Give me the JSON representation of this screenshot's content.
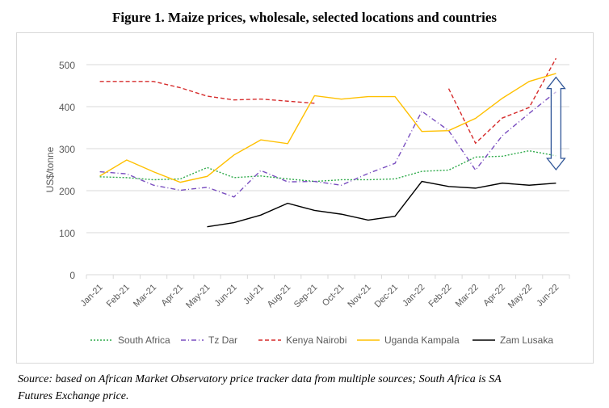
{
  "chart_data": {
    "type": "line",
    "title": "Figure 1. Maize prices, wholesale, selected locations and countries",
    "xlabel": "",
    "ylabel": "US$/tonne",
    "ylim": [
      0,
      500
    ],
    "yticks": [
      0,
      100,
      200,
      300,
      400,
      500
    ],
    "grid": true,
    "legend": "bottom",
    "categories": [
      "Jan-21",
      "Feb-21",
      "Mar-21",
      "Apr-21",
      "May-21",
      "Jun-21",
      "Jul-21",
      "Aug-21",
      "Sep-21",
      "Oct-21",
      "Nov-21",
      "Dec-21",
      "Jan-22",
      "Feb-22",
      "Mar-22",
      "Apr-22",
      "May-22",
      "Jun-22"
    ],
    "series": [
      {
        "name": "South Africa",
        "color": "#2eaa4a",
        "dash": "2,2",
        "values": [
          233,
          231,
          226,
          228,
          255,
          231,
          235,
          228,
          222,
          226,
          226,
          228,
          246,
          249,
          280,
          282,
          295,
          283
        ]
      },
      {
        "name": "Tz Dar",
        "color": "#7a4fc0",
        "dash": "6,3,1,3",
        "values": [
          245,
          240,
          213,
          201,
          208,
          185,
          248,
          221,
          222,
          213,
          241,
          265,
          389,
          343,
          249,
          331,
          384,
          435
        ]
      },
      {
        "name": "Kenya Nairobi",
        "color": "#d62c2c",
        "dash": "5,3",
        "values": [
          460,
          460,
          460,
          445,
          425,
          416,
          418,
          413,
          408,
          null,
          null,
          null,
          null,
          443,
          313,
          373,
          398,
          515
        ]
      },
      {
        "name": "Uganda Kampala",
        "color": "#ffc000",
        "dash": "",
        "values": [
          235,
          273,
          245,
          220,
          234,
          285,
          321,
          312,
          426,
          418,
          424,
          424,
          341,
          343,
          372,
          420,
          460,
          479
        ]
      },
      {
        "name": "Zam Lusaka",
        "color": "#000000",
        "dash": "",
        "values": [
          null,
          null,
          null,
          null,
          114,
          124,
          142,
          170,
          153,
          144,
          130,
          139,
          222,
          210,
          206,
          218,
          213,
          218
        ]
      }
    ],
    "annotation": {
      "type": "double-arrow",
      "at": "Jun-22",
      "from": 250,
      "to": 470,
      "color": "#2f5597"
    }
  },
  "caption": {
    "line1": "Source: based on African Market Observatory price tracker data from multiple sources; South Africa is SA",
    "line2": "Futures Exchange price."
  }
}
